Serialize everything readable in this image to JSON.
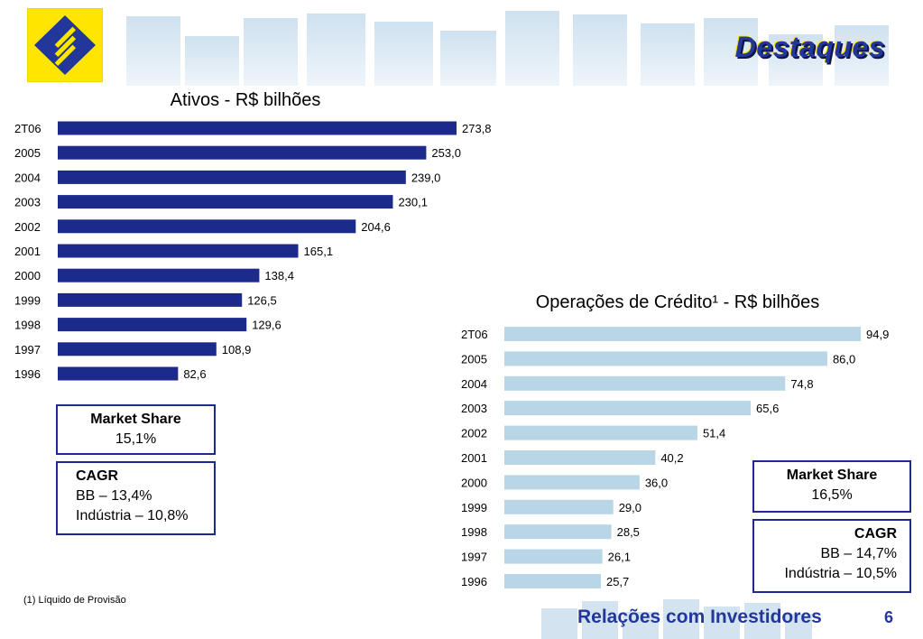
{
  "header": {
    "title": "Destaques"
  },
  "colors": {
    "brand_blue": "#23379b",
    "brand_yellow": "#ffe600",
    "bar_dark": "#1c2a8c",
    "bar_light": "#b8d6e6"
  },
  "chart_data": [
    {
      "type": "bar",
      "orientation": "horizontal",
      "title": "Ativos - R$ bilhões",
      "categories": [
        "2T06",
        "2005",
        "2004",
        "2003",
        "2002",
        "2001",
        "2000",
        "1999",
        "1998",
        "1997",
        "1996"
      ],
      "values": [
        273.8,
        253.0,
        239.0,
        230.1,
        204.6,
        165.1,
        138.4,
        126.5,
        129.6,
        108.9,
        82.6
      ],
      "value_labels": [
        "273,8",
        "253,0",
        "239,0",
        "230,1",
        "204,6",
        "165,1",
        "138,4",
        "126,5",
        "129,6",
        "108,9",
        "82,6"
      ],
      "color": "#1c2a8c"
    },
    {
      "type": "bar",
      "orientation": "horizontal",
      "title": "Operações de Crédito¹ - R$ bilhões",
      "categories": [
        "2T06",
        "2005",
        "2004",
        "2003",
        "2002",
        "2001",
        "2000",
        "1999",
        "1998",
        "1997",
        "1996"
      ],
      "values": [
        94.9,
        86.0,
        74.8,
        65.6,
        51.4,
        40.2,
        36.0,
        29.0,
        28.5,
        26.1,
        25.7
      ],
      "value_labels": [
        "94,9",
        "86,0",
        "74,8",
        "65,6",
        "51,4",
        "40,2",
        "36,0",
        "29,0",
        "28,5",
        "26,1",
        "25,7"
      ],
      "color": "#b8d6e6"
    }
  ],
  "left_boxes": {
    "market_share_label": "Market Share",
    "market_share_value": "15,1%",
    "cagr_label": "CAGR",
    "cagr_bb": "BB – 13,4%",
    "cagr_industry": "Indústria – 10,8%"
  },
  "right_boxes": {
    "market_share_label": "Market Share",
    "market_share_value": "16,5%",
    "cagr_label": "CAGR",
    "cagr_bb": "BB – 14,7%",
    "cagr_industry": "Indústria – 10,5%"
  },
  "footnote": "(1) Líquido de Provisão",
  "footer": {
    "label": "Relações com Investidores",
    "page": "6"
  }
}
